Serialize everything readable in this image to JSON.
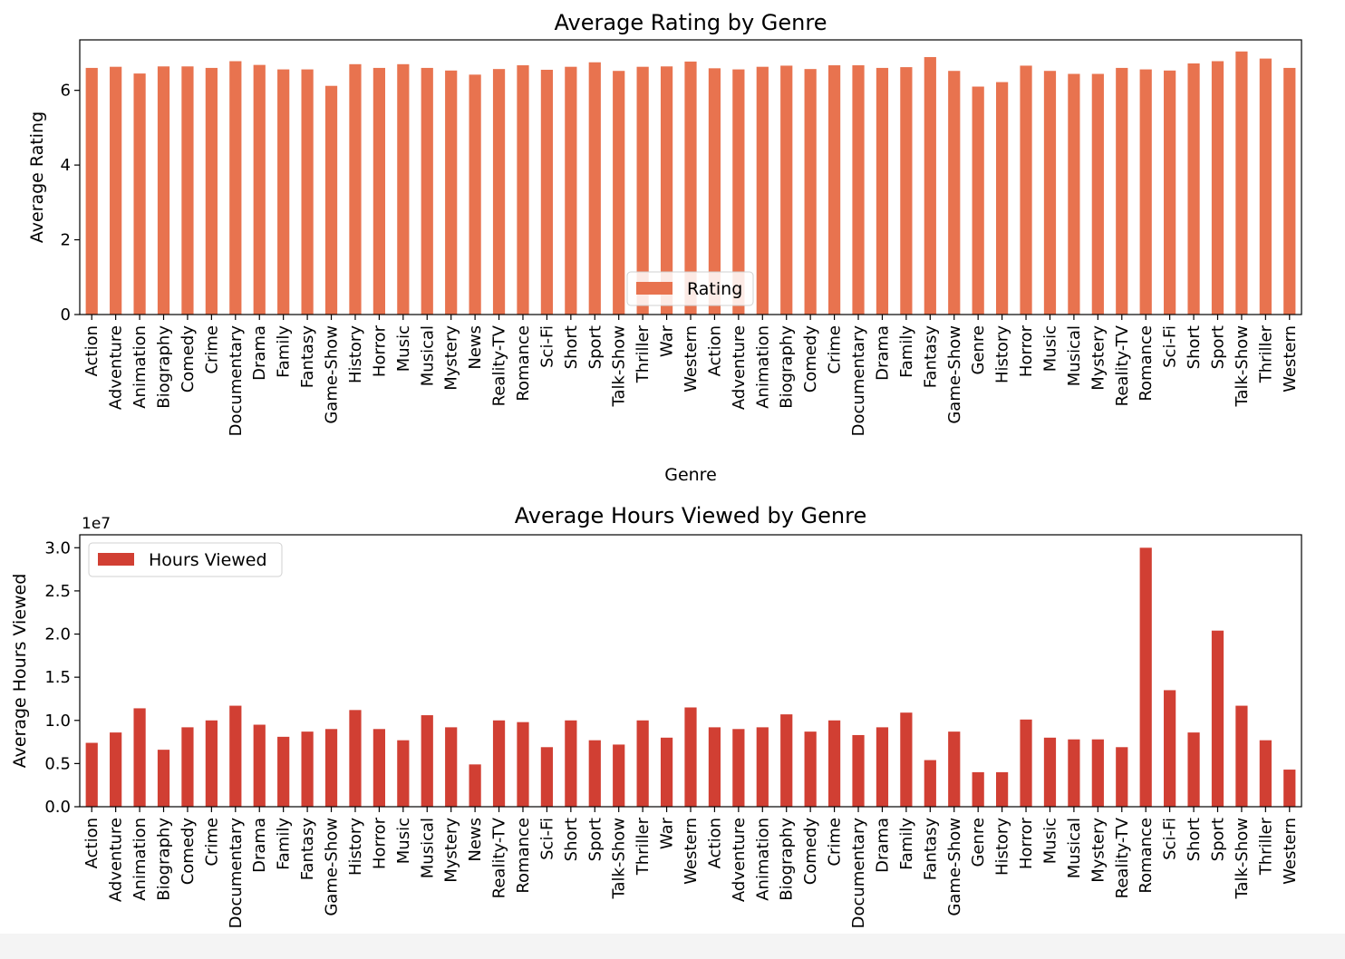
{
  "chart_data": [
    {
      "type": "bar",
      "title": "Average Rating by Genre",
      "xlabel": "Genre",
      "ylabel": "Average Rating",
      "ylim": [
        0,
        7.35
      ],
      "yticks": [
        0,
        2,
        4,
        6
      ],
      "ytick_labels": [
        "0",
        "2",
        "4",
        "6"
      ],
      "legend_placement": "lower-center",
      "grid": false,
      "color": "#e8734f",
      "categories": [
        "Action",
        "Adventure",
        "Animation",
        "Biography",
        "Comedy",
        "Crime",
        "Documentary",
        "Drama",
        "Family",
        "Fantasy",
        "Game-Show",
        "History",
        "Horror",
        "Music",
        "Musical",
        "Mystery",
        "News",
        "Reality-TV",
        "Romance",
        "Sci-Fi",
        "Short",
        "Sport",
        "Talk-Show",
        "Thriller",
        "War",
        "Western",
        "Action",
        "Adventure",
        "Animation",
        "Biography",
        "Comedy",
        "Crime",
        "Documentary",
        "Drama",
        "Family",
        "Fantasy",
        "Game-Show",
        "Genre",
        "History",
        "Horror",
        "Music",
        "Musical",
        "Mystery",
        "Reality-TV",
        "Romance",
        "Sci-Fi",
        "Short",
        "Sport",
        "Talk-Show",
        "Thriller",
        "Western"
      ],
      "series": [
        {
          "name": "Rating",
          "values": [
            6.6,
            6.63,
            6.45,
            6.64,
            6.64,
            6.6,
            6.78,
            6.68,
            6.56,
            6.56,
            6.12,
            6.7,
            6.6,
            6.7,
            6.6,
            6.53,
            6.42,
            6.57,
            6.67,
            6.55,
            6.63,
            6.75,
            6.52,
            6.63,
            6.64,
            6.77,
            6.59,
            6.56,
            6.63,
            6.66,
            6.57,
            6.67,
            6.67,
            6.6,
            6.62,
            6.89,
            6.52,
            6.1,
            6.22,
            6.66,
            6.52,
            6.44,
            6.44,
            6.6,
            6.56,
            6.53,
            6.72,
            6.78,
            7.04,
            6.85,
            6.6
          ]
        }
      ]
    },
    {
      "type": "bar",
      "title": "Average Hours Viewed by Genre",
      "xlabel": "",
      "ylabel": "Average Hours Viewed",
      "y_offset_label": "1e7",
      "ylim": [
        0,
        3.15
      ],
      "yticks": [
        0,
        0.5,
        1.0,
        1.5,
        2.0,
        2.5,
        3.0
      ],
      "ytick_labels": [
        "0.0",
        "0.5",
        "1.0",
        "1.5",
        "2.0",
        "2.5",
        "3.0"
      ],
      "legend_placement": "upper-left",
      "grid": false,
      "color": "#d13f33",
      "categories": [
        "Action",
        "Adventure",
        "Animation",
        "Biography",
        "Comedy",
        "Crime",
        "Documentary",
        "Drama",
        "Family",
        "Fantasy",
        "Game-Show",
        "History",
        "Horror",
        "Music",
        "Musical",
        "Mystery",
        "News",
        "Reality-TV",
        "Romance",
        "Sci-Fi",
        "Short",
        "Sport",
        "Talk-Show",
        "Thriller",
        "War",
        "Western",
        "Action",
        "Adventure",
        "Animation",
        "Biography",
        "Comedy",
        "Crime",
        "Documentary",
        "Drama",
        "Family",
        "Fantasy",
        "Game-Show",
        "Genre",
        "History",
        "Horror",
        "Music",
        "Musical",
        "Mystery",
        "Reality-TV",
        "Romance",
        "Sci-Fi",
        "Short",
        "Sport",
        "Talk-Show",
        "Thriller",
        "Western"
      ],
      "series": [
        {
          "name": "Hours Viewed",
          "values": [
            0.74,
            0.86,
            1.14,
            0.66,
            0.92,
            1.0,
            1.17,
            0.95,
            0.81,
            0.87,
            0.9,
            1.12,
            0.9,
            0.77,
            1.06,
            0.92,
            0.49,
            1.0,
            0.98,
            0.69,
            1.0,
            0.77,
            0.72,
            1.0,
            0.8,
            1.15,
            0.92,
            0.9,
            0.92,
            1.07,
            0.87,
            1.0,
            0.83,
            0.92,
            1.09,
            0.54,
            0.87,
            0.4,
            0.4,
            1.01,
            0.8,
            0.78,
            0.78,
            0.69,
            3.0,
            1.35,
            0.86,
            2.04,
            1.17,
            0.77,
            0.43
          ]
        }
      ]
    }
  ]
}
